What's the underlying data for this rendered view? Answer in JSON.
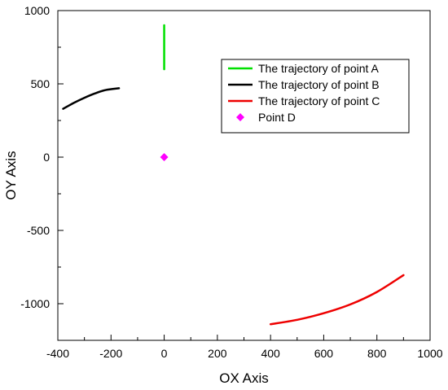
{
  "chart_data": {
    "type": "scatter",
    "title": "",
    "xlabel": "OX Axis",
    "ylabel": "OY Axis",
    "xlim": [
      -400,
      1000
    ],
    "ylim": [
      -1250,
      1000
    ],
    "xticks": [
      -400,
      -200,
      0,
      200,
      400,
      600,
      800,
      1000
    ],
    "xtick_labels": [
      "-400",
      "-200",
      "0",
      "200",
      "400",
      "600",
      "800",
      "1000"
    ],
    "yticks": [
      -1000,
      -500,
      0,
      500,
      1000
    ],
    "ytick_labels": [
      "-1000",
      "-500",
      "0",
      "500",
      "1000"
    ],
    "grid": false,
    "legend_position": "top-right",
    "series": [
      {
        "name": "The trajectory of point A",
        "kind": "line",
        "color": "#00e000",
        "x": [
          0,
          0
        ],
        "y": [
          600,
          900
        ]
      },
      {
        "name": "The trajectory of point B",
        "kind": "line",
        "color": "#000000",
        "x": [
          -380,
          -340,
          -300,
          -260,
          -220,
          -170
        ],
        "y": [
          330,
          370,
          405,
          435,
          458,
          470
        ]
      },
      {
        "name": "The trajectory of point C",
        "kind": "line",
        "color": "#ee0000",
        "x": [
          400,
          500,
          600,
          700,
          800,
          900
        ],
        "y": [
          -1140,
          -1110,
          -1065,
          -1005,
          -920,
          -805
        ]
      },
      {
        "name": "Point D",
        "kind": "marker",
        "marker": "diamond",
        "color": "#ff00ff",
        "x": [
          0
        ],
        "y": [
          0
        ]
      }
    ]
  }
}
